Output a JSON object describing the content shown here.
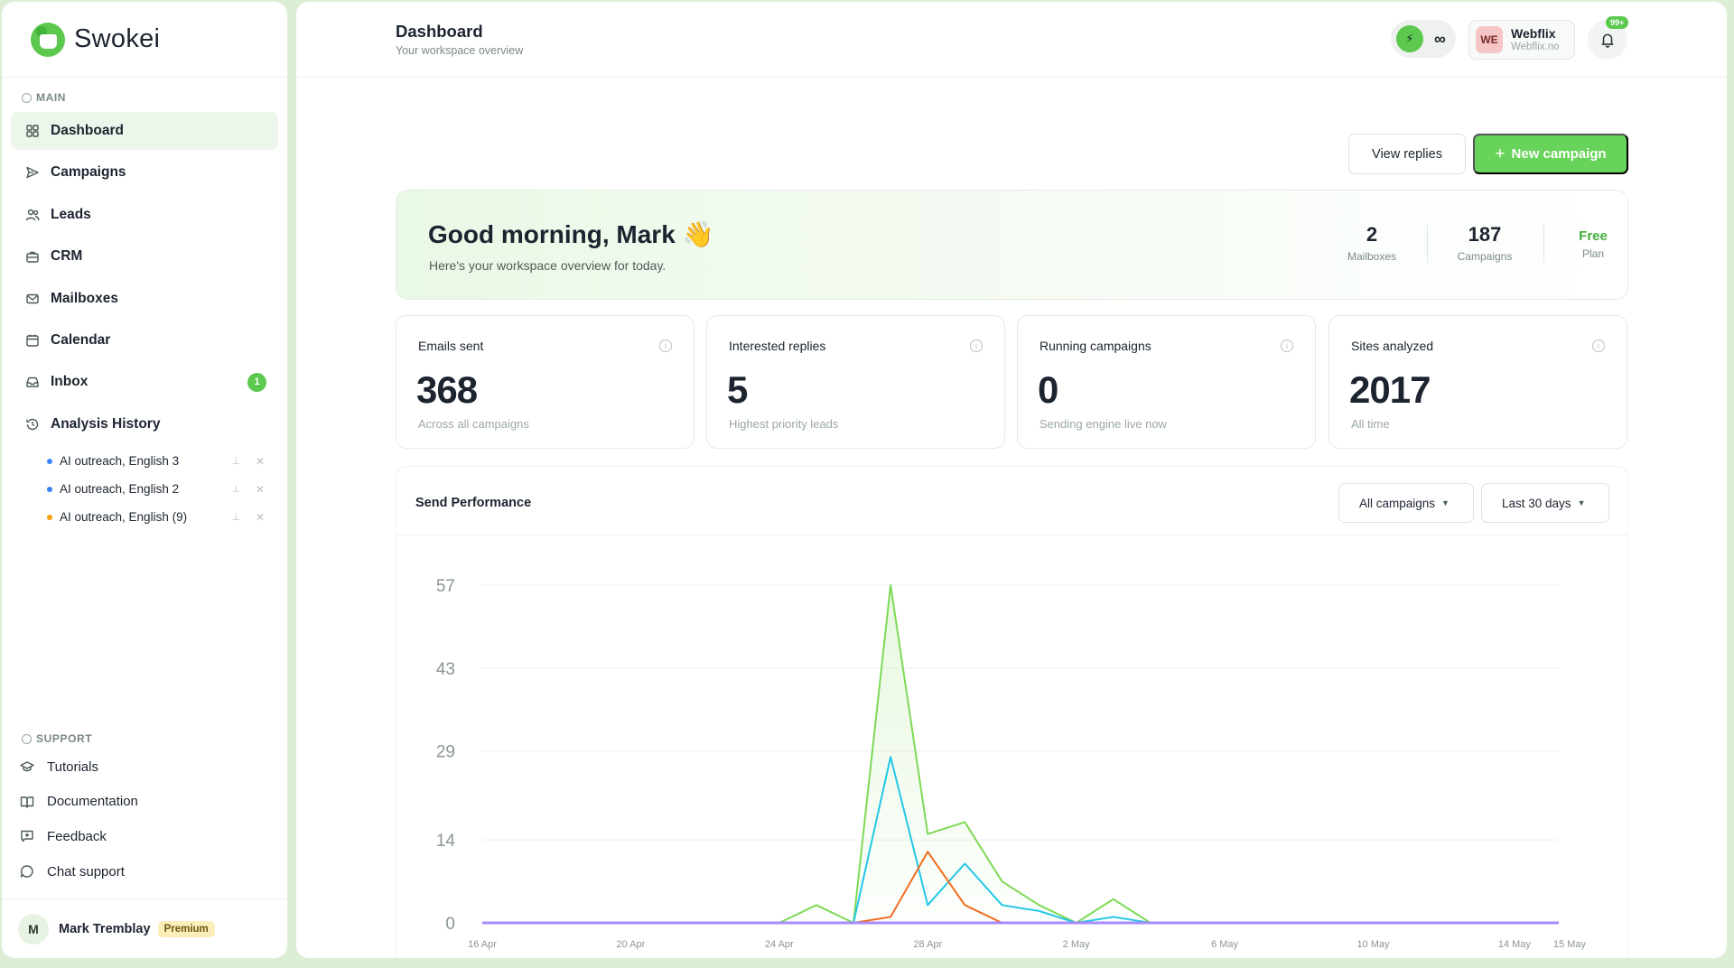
{
  "brand": {
    "name": "Swokei"
  },
  "sidebar": {
    "main_label": "MAIN",
    "items": [
      {
        "label": "Dashboard",
        "icon": "grid-icon",
        "active": true
      },
      {
        "label": "Campaigns",
        "icon": "send-icon"
      },
      {
        "label": "Leads",
        "icon": "users-icon"
      },
      {
        "label": "CRM",
        "icon": "briefcase-icon"
      },
      {
        "label": "Mailboxes",
        "icon": "mail-icon"
      },
      {
        "label": "Calendar",
        "icon": "calendar-icon"
      },
      {
        "label": "Inbox",
        "icon": "inbox-icon",
        "badge": "1"
      },
      {
        "label": "Analysis History",
        "icon": "history-icon"
      }
    ],
    "history": [
      {
        "label": "AI outreach, English 3",
        "color": "#3b82f6"
      },
      {
        "label": "AI outreach, English 2",
        "color": "#3b82f6"
      },
      {
        "label": "AI outreach, English (9)",
        "color": "#f59e0b"
      }
    ],
    "support_label": "SUPPORT",
    "support": [
      {
        "label": "Tutorials",
        "icon": "graduation-cap-icon"
      },
      {
        "label": "Documentation",
        "icon": "book-icon"
      },
      {
        "label": "Feedback",
        "icon": "feedback-icon"
      },
      {
        "label": "Chat support",
        "icon": "chat-icon"
      }
    ],
    "user": {
      "initial": "M",
      "name": "Mark Tremblay",
      "plan_badge": "Premium"
    }
  },
  "header": {
    "title": "Dashboard",
    "subtitle": "Your workspace overview",
    "credits": "∞",
    "workspace": {
      "initials": "WE",
      "name": "Webflix",
      "domain": "Webflix.no"
    },
    "notifications": "99+"
  },
  "actions": {
    "view_replies": "View replies",
    "new_campaign": "New campaign"
  },
  "hero": {
    "greeting": "Good morning, Mark 👋",
    "subtitle": "Here's your workspace overview for today.",
    "stats": [
      {
        "value": "2",
        "label": "Mailboxes"
      },
      {
        "value": "187",
        "label": "Campaigns"
      },
      {
        "value": "Free",
        "label": "Plan"
      }
    ]
  },
  "kpis": [
    {
      "title": "Emails sent",
      "value": "368",
      "sub": "Across all campaigns"
    },
    {
      "title": "Interested replies",
      "value": "5",
      "sub": "Highest priority leads"
    },
    {
      "title": "Running campaigns",
      "value": "0",
      "sub": "Sending engine live now"
    },
    {
      "title": "Sites analyzed",
      "value": "2017",
      "sub": "All time"
    }
  ],
  "performance": {
    "title": "Send Performance",
    "campaign_filter": "All campaigns",
    "range_filter": "Last 30 days"
  },
  "chart_data": {
    "type": "line",
    "title": "Send Performance",
    "x": [
      "16 Apr",
      "17 Apr",
      "18 Apr",
      "19 Apr",
      "20 Apr",
      "21 Apr",
      "22 Apr",
      "23 Apr",
      "24 Apr",
      "25 Apr",
      "26 Apr",
      "27 Apr",
      "28 Apr",
      "29 Apr",
      "30 Apr",
      "1 May",
      "2 May",
      "3 May",
      "4 May",
      "5 May",
      "6 May",
      "7 May",
      "8 May",
      "9 May",
      "10 May",
      "11 May",
      "12 May",
      "13 May",
      "14 May",
      "15 May"
    ],
    "x_tick_labels": [
      "16 Apr",
      "20 Apr",
      "24 Apr",
      "28 Apr",
      "2 May",
      "6 May",
      "10 May",
      "14 May",
      "15 May"
    ],
    "y_ticks": [
      0,
      14,
      29,
      43,
      57
    ],
    "ylim": [
      0,
      57
    ],
    "grid": true,
    "series": [
      {
        "color": "#7ed957",
        "values": [
          0,
          0,
          0,
          0,
          0,
          0,
          0,
          0,
          0,
          3,
          0,
          57,
          15,
          17,
          7,
          3,
          0,
          4,
          0,
          0,
          0,
          0,
          0,
          0,
          0,
          0,
          0,
          0,
          0,
          0
        ]
      },
      {
        "color": "#22c7e6",
        "values": [
          0,
          0,
          0,
          0,
          0,
          0,
          0,
          0,
          0,
          0,
          0,
          28,
          3,
          10,
          3,
          2,
          0,
          1,
          0,
          0,
          0,
          0,
          0,
          0,
          0,
          0,
          0,
          0,
          0,
          0
        ]
      },
      {
        "color": "#f26b1d",
        "values": [
          0,
          0,
          0,
          0,
          0,
          0,
          0,
          0,
          0,
          0,
          0,
          1,
          12,
          3,
          0,
          0,
          0,
          0,
          0,
          0,
          0,
          0,
          0,
          0,
          0,
          0,
          0,
          0,
          0,
          0
        ]
      },
      {
        "color": "#a78bfa",
        "values": [
          0,
          0,
          0,
          0,
          0,
          0,
          0,
          0,
          0,
          0,
          0,
          0,
          0,
          0,
          0,
          0,
          0,
          0,
          0,
          0,
          0,
          0,
          0,
          0,
          0,
          0,
          0,
          0,
          0,
          0
        ]
      }
    ]
  }
}
